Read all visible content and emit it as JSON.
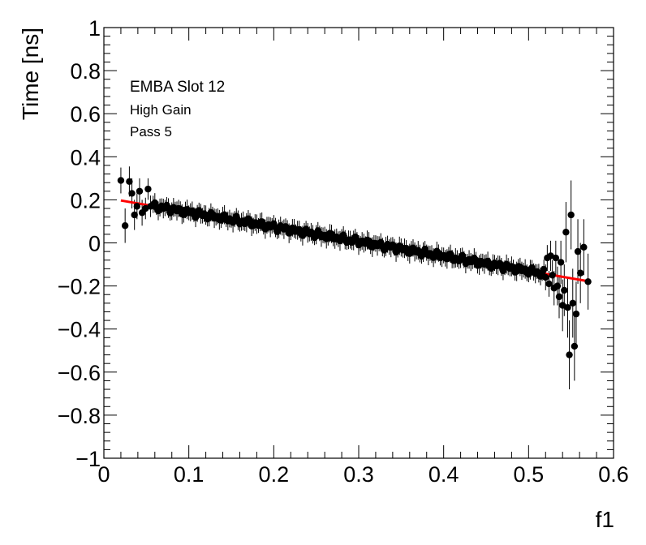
{
  "chart_data": {
    "type": "scatter",
    "xlabel": "f1",
    "ylabel": "Time [ns]",
    "xlim": [
      0,
      0.6
    ],
    "ylim": [
      -1,
      1
    ],
    "x_ticks": [
      0,
      0.1,
      0.2,
      0.3,
      0.4,
      0.5,
      0.6
    ],
    "x_tick_labels": [
      "0",
      "0.1",
      "0.2",
      "0.3",
      "0.4",
      "0.5",
      "0.6"
    ],
    "y_ticks": [
      -1,
      -0.8,
      -0.6,
      -0.4,
      -0.2,
      0,
      0.2,
      0.4,
      0.6,
      0.8,
      1
    ],
    "y_tick_labels": [
      "−1",
      "−0.8",
      "−0.6",
      "−0.4",
      "−0.2",
      "0",
      "0.2",
      "0.4",
      "0.6",
      "0.8",
      "1"
    ],
    "annotations": [
      "EMBA Slot 12",
      "High Gain",
      "Pass 5"
    ],
    "grid": false,
    "legend": "none",
    "marker_color": "#000000",
    "fit_color": "#ff0000",
    "fit_line": {
      "x": [
        0.02,
        0.57
      ],
      "y": [
        0.197,
        -0.178
      ]
    },
    "points": [
      {
        "x": 0.02,
        "y": 0.29,
        "err": 0.06
      },
      {
        "x": 0.025,
        "y": 0.08,
        "err": 0.08
      },
      {
        "x": 0.03,
        "y": 0.285,
        "err": 0.07
      },
      {
        "x": 0.033,
        "y": 0.23,
        "err": 0.07
      },
      {
        "x": 0.036,
        "y": 0.13,
        "err": 0.07
      },
      {
        "x": 0.039,
        "y": 0.17,
        "err": 0.06
      },
      {
        "x": 0.042,
        "y": 0.24,
        "err": 0.06
      },
      {
        "x": 0.045,
        "y": 0.14,
        "err": 0.06
      },
      {
        "x": 0.049,
        "y": 0.16,
        "err": 0.05
      },
      {
        "x": 0.052,
        "y": 0.25,
        "err": 0.05
      },
      {
        "x": 0.055,
        "y": 0.17,
        "err": 0.05
      },
      {
        "x": 0.52,
        "y": -0.16,
        "err": 0.06
      },
      {
        "x": 0.522,
        "y": -0.07,
        "err": 0.06
      },
      {
        "x": 0.524,
        "y": -0.19,
        "err": 0.06
      },
      {
        "x": 0.526,
        "y": -0.06,
        "err": 0.07
      },
      {
        "x": 0.528,
        "y": -0.15,
        "err": 0.07
      },
      {
        "x": 0.53,
        "y": -0.21,
        "err": 0.08
      },
      {
        "x": 0.532,
        "y": -0.07,
        "err": 0.08
      },
      {
        "x": 0.534,
        "y": -0.2,
        "err": 0.09
      },
      {
        "x": 0.536,
        "y": -0.25,
        "err": 0.1
      },
      {
        "x": 0.538,
        "y": -0.09,
        "err": 0.1
      },
      {
        "x": 0.54,
        "y": -0.29,
        "err": 0.12
      },
      {
        "x": 0.542,
        "y": -0.22,
        "err": 0.12
      },
      {
        "x": 0.544,
        "y": 0.05,
        "err": 0.14
      },
      {
        "x": 0.546,
        "y": -0.3,
        "err": 0.14
      },
      {
        "x": 0.548,
        "y": -0.52,
        "err": 0.16
      },
      {
        "x": 0.55,
        "y": 0.13,
        "err": 0.16
      },
      {
        "x": 0.552,
        "y": -0.28,
        "err": 0.16
      },
      {
        "x": 0.554,
        "y": -0.48,
        "err": 0.16
      },
      {
        "x": 0.556,
        "y": -0.33,
        "err": 0.15
      },
      {
        "x": 0.558,
        "y": -0.04,
        "err": 0.15
      },
      {
        "x": 0.561,
        "y": -0.14,
        "err": 0.14
      },
      {
        "x": 0.565,
        "y": -0.02,
        "err": 0.13
      },
      {
        "x": 0.57,
        "y": -0.18,
        "err": 0.13
      }
    ],
    "dense_band": {
      "x_start": 0.058,
      "x_end": 0.518,
      "step": 0.002,
      "err": 0.04
    }
  }
}
